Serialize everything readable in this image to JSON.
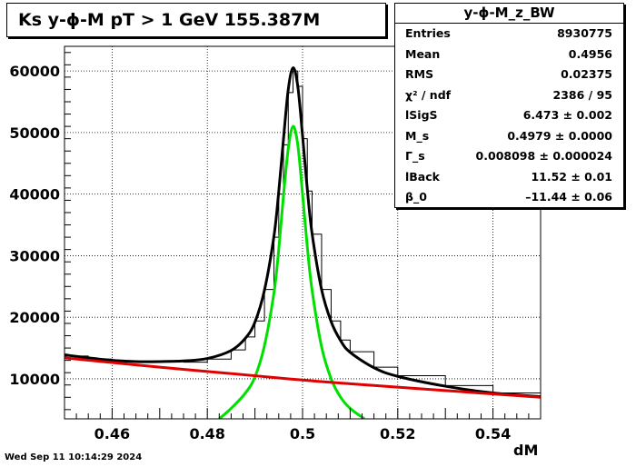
{
  "title": "Ks y-ϕ-M pT > 1 GeV  155.387M",
  "stats": {
    "name": "y-ϕ-M_z_BW",
    "rows": [
      {
        "label": "Entries",
        "value": "8930775"
      },
      {
        "label": "Mean",
        "value": "0.4956"
      },
      {
        "label": "RMS",
        "value": "0.02375"
      },
      {
        "label": "χ² / ndf",
        "value": "2386 / 95"
      },
      {
        "label": "lSigS",
        "value": "6.473 ± 0.002"
      },
      {
        "label": "M_s",
        "value": "0.4979 ± 0.0000"
      },
      {
        "label": "Γ_s",
        "value": "0.008098 ± 0.000024"
      },
      {
        "label": "lBack",
        "value": "11.52 ± 0.01"
      },
      {
        "label": "β_0",
        "value": "–11.44 ± 0.06"
      }
    ]
  },
  "timestamp": "Wed Sep 11 10:14:29 2024",
  "chart_data": {
    "type": "line",
    "xlabel": "dM",
    "ylabel": "",
    "xlim": [
      0.45,
      0.55
    ],
    "ylim": [
      3500,
      64000
    ],
    "xticks": [
      0.46,
      0.48,
      0.5,
      0.52,
      0.54
    ],
    "xtick_labels": [
      "0.46",
      "0.48",
      "0.5",
      "0.52",
      "0.54"
    ],
    "yticks": [
      10000,
      20000,
      30000,
      40000,
      50000,
      60000
    ],
    "ytick_labels": [
      "10000",
      "20000",
      "30000",
      "40000",
      "50000",
      "60000"
    ],
    "grid": true,
    "series": [
      {
        "color": "#000000",
        "style": "step",
        "x": [
          0.45,
          0.455,
          0.46,
          0.465,
          0.47,
          0.475,
          0.48,
          0.485,
          0.488,
          0.49,
          0.492,
          0.494,
          0.495,
          0.496,
          0.497,
          0.498,
          0.499,
          0.5,
          0.501,
          0.502,
          0.504,
          0.506,
          0.508,
          0.51,
          0.515,
          0.52,
          0.53,
          0.54,
          0.55
        ],
        "y": [
          13700,
          13200,
          12900,
          12800,
          12900,
          12700,
          13200,
          14700,
          16800,
          19400,
          24500,
          33000,
          40000,
          48000,
          56500,
          60000,
          57500,
          49000,
          40500,
          33500,
          24500,
          19400,
          16300,
          14400,
          11900,
          10500,
          8900,
          7700,
          7000
        ]
      },
      {
        "color": "#000000",
        "style": "line",
        "x": [
          0.45,
          0.455,
          0.46,
          0.465,
          0.47,
          0.475,
          0.48,
          0.485,
          0.488,
          0.49,
          0.492,
          0.494,
          0.495,
          0.496,
          0.497,
          0.498,
          0.499,
          0.5,
          0.501,
          0.502,
          0.504,
          0.506,
          0.508,
          0.51,
          0.515,
          0.52,
          0.53,
          0.54,
          0.55
        ],
        "y": [
          13900,
          13400,
          13000,
          12800,
          12800,
          12900,
          13300,
          14600,
          16600,
          19200,
          24400,
          33200,
          40400,
          49000,
          57000,
          60500,
          57500,
          49500,
          40800,
          33600,
          24500,
          19300,
          16200,
          14300,
          11800,
          10400,
          8800,
          7700,
          7100
        ]
      },
      {
        "color": "#00e000",
        "style": "line",
        "x": [
          0.4825,
          0.485,
          0.488,
          0.49,
          0.492,
          0.494,
          0.495,
          0.496,
          0.497,
          0.498,
          0.499,
          0.5,
          0.501,
          0.502,
          0.504,
          0.506,
          0.508,
          0.51,
          0.513
        ],
        "y": [
          3500,
          5200,
          7700,
          10300,
          15400,
          24000,
          31000,
          39800,
          47400,
          51000,
          48000,
          40000,
          31400,
          24400,
          15200,
          10000,
          7000,
          5200,
          3500
        ]
      },
      {
        "color": "#e00000",
        "style": "line",
        "x": [
          0.45,
          0.47,
          0.49,
          0.5,
          0.51,
          0.53,
          0.55
        ],
        "y": [
          13400,
          11900,
          10500,
          9800,
          9200,
          8100,
          7000
        ]
      }
    ]
  }
}
